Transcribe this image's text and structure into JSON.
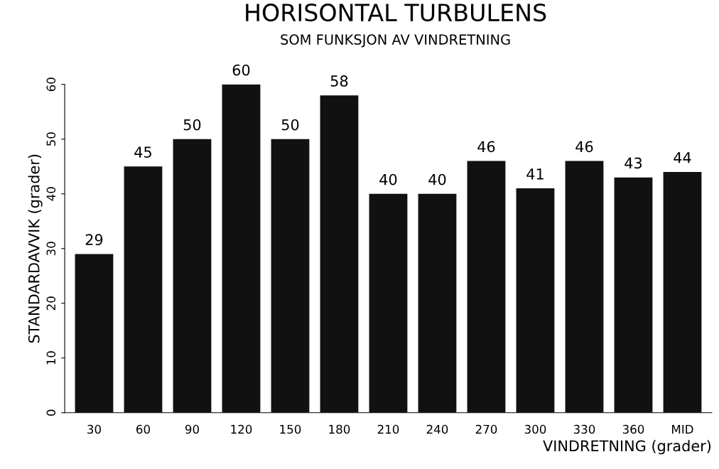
{
  "chart_data": {
    "type": "bar",
    "title": "HORISONTAL TURBULENS",
    "subtitle": "SOM FUNKSJON AV VINDRETNING",
    "xlabel": "VINDRETNING (grader)",
    "ylabel": "STANDARDAVVIK (grader)",
    "categories": [
      "30",
      "60",
      "90",
      "120",
      "150",
      "180",
      "210",
      "240",
      "270",
      "300",
      "330",
      "360",
      "MID"
    ],
    "values": [
      29,
      45,
      50,
      60,
      50,
      58,
      40,
      40,
      46,
      41,
      46,
      43,
      44
    ],
    "color": "#111111",
    "data_labels": true,
    "ylim": [
      0,
      60
    ],
    "yticks": [
      0,
      10,
      20,
      30,
      40,
      50,
      60
    ],
    "grid": false
  }
}
